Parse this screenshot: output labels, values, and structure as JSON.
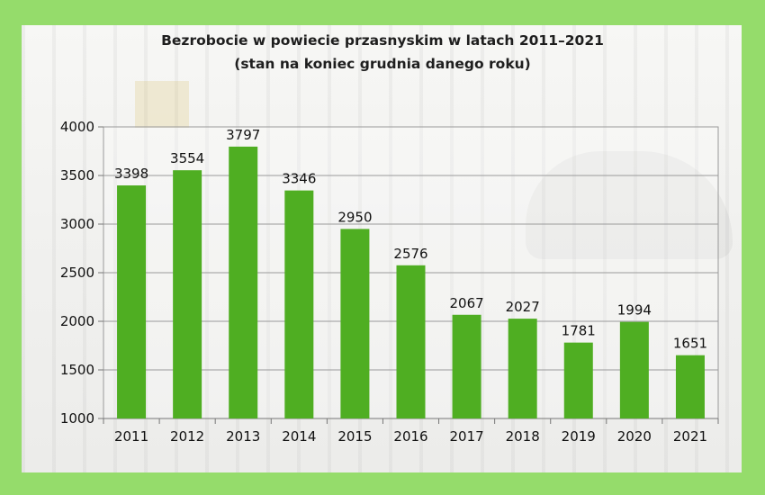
{
  "chart_data": {
    "type": "bar",
    "title": "Bezrobocie w powiecie przasnyskim w latach 2011–2021",
    "subtitle": "(stan na koniec grudnia danego roku)",
    "categories": [
      "2011",
      "2012",
      "2013",
      "2014",
      "2015",
      "2016",
      "2017",
      "2018",
      "2019",
      "2020",
      "2021"
    ],
    "values": [
      3398,
      3554,
      3797,
      3346,
      2950,
      2576,
      2067,
      2027,
      1781,
      1994,
      1651
    ],
    "yticks": [
      1000,
      1500,
      2000,
      2500,
      3000,
      3500,
      4000
    ],
    "ylim": [
      1000,
      4000
    ],
    "grid": true,
    "bar_color": "#4fae22",
    "frame_color": "#95dc6b"
  }
}
